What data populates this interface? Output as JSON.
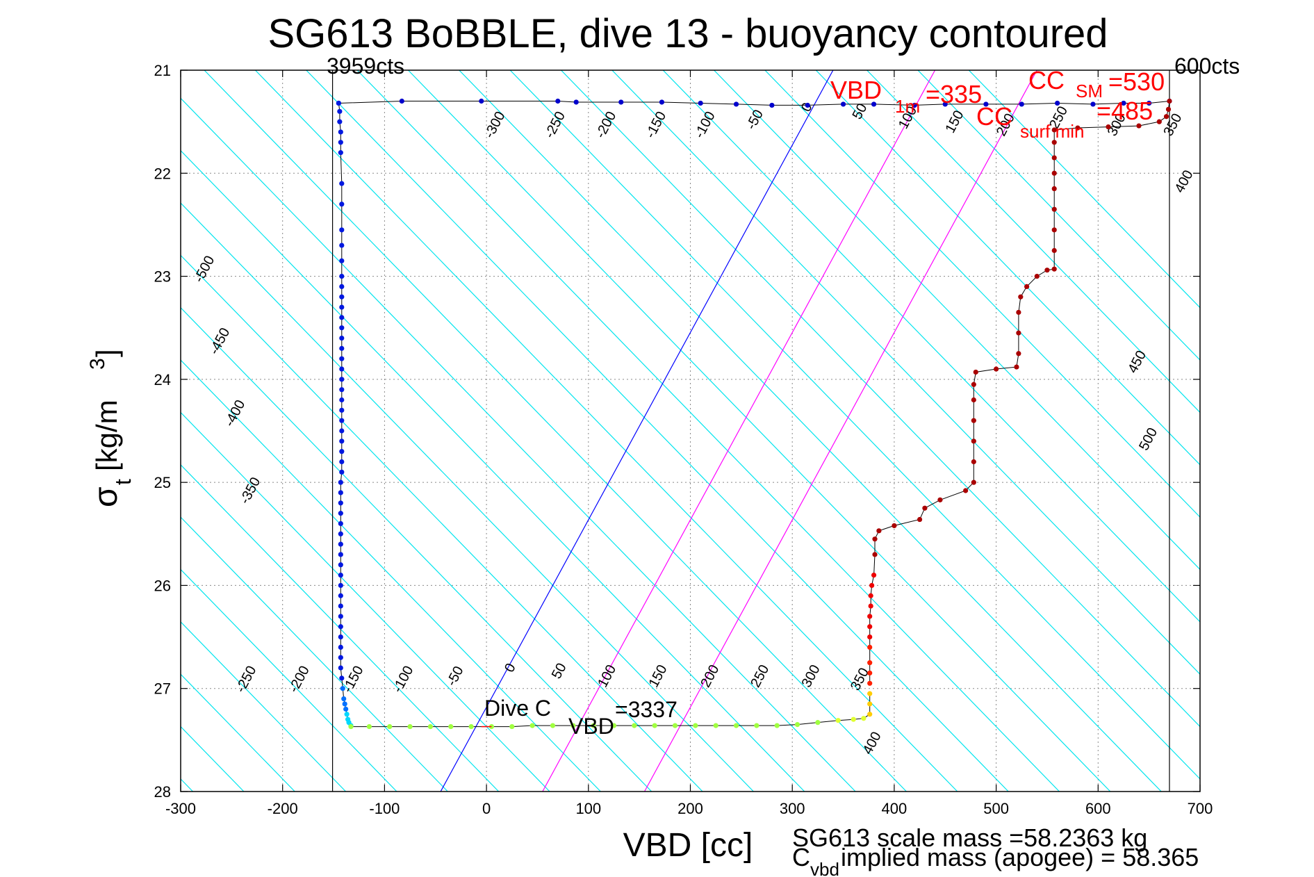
{
  "chart_data": {
    "type": "scatter",
    "title": "SG613 BoBBLE, dive 13 - buoyancy contoured",
    "xlabel": "VBD [cc]",
    "ylabel_main": "σ",
    "ylabel_sub": "t",
    "ylabel_rest": " [kg/m",
    "ylabel_sup": "3",
    "ylabel_close": "]",
    "xlim": [
      -300,
      700
    ],
    "ylim": [
      21,
      28
    ],
    "y_reversed": true,
    "grid": true,
    "x_ticks": [
      -300,
      -200,
      -100,
      0,
      100,
      200,
      300,
      400,
      500,
      600,
      700
    ],
    "y_ticks": [
      21,
      22,
      23,
      24,
      25,
      26,
      27,
      28
    ],
    "colors": {
      "contour": "#00e5ee",
      "dive_line": "#0000ff",
      "magenta_line": "#ff00ff",
      "red_text": "#ff0000",
      "climb_points": "#aa0000"
    },
    "reference_lines": {
      "vbd_min_x": -151,
      "vbd_min_label": "3959cts",
      "vbd_max_x": 670,
      "vbd_max_label": "600cts"
    },
    "contour_slope_cc_per_sigma": 98.4,
    "contour_levels": [
      -500,
      -450,
      -400,
      -350,
      -300,
      -250,
      -200,
      -150,
      -100,
      -50,
      0,
      50,
      100,
      150,
      200,
      250,
      300,
      350,
      400,
      450,
      500
    ],
    "contour_labels_top": [
      {
        "text": "-300",
        "x": 12,
        "y": 21.55
      },
      {
        "text": "-250",
        "x": 71,
        "y": 21.55
      },
      {
        "text": "-200",
        "x": 121,
        "y": 21.55
      },
      {
        "text": "-150",
        "x": 170,
        "y": 21.55
      },
      {
        "text": "-100",
        "x": 218,
        "y": 21.55
      },
      {
        "text": "-50",
        "x": 267,
        "y": 21.5
      },
      {
        "text": "0",
        "x": 318,
        "y": 21.38
      },
      {
        "text": "50",
        "x": 370,
        "y": 21.42
      },
      {
        "text": "100",
        "x": 417,
        "y": 21.48
      },
      {
        "text": "150",
        "x": 463,
        "y": 21.52
      },
      {
        "text": "200",
        "x": 513,
        "y": 21.55
      },
      {
        "text": "250",
        "x": 565,
        "y": 21.48
      },
      {
        "text": "300",
        "x": 622,
        "y": 21.55
      },
      {
        "text": "350",
        "x": 677,
        "y": 21.55
      }
    ],
    "contour_labels_left": [
      {
        "text": "-500",
        "x": -273,
        "y": 22.95
      },
      {
        "text": "-450",
        "x": -258,
        "y": 23.65
      },
      {
        "text": "-400",
        "x": -243,
        "y": 24.35
      },
      {
        "text": "-350",
        "x": -228,
        "y": 25.1
      }
    ],
    "contour_labels_right": [
      {
        "text": "400",
        "x": 688,
        "y": 22.1
      },
      {
        "text": "450",
        "x": 642,
        "y": 23.85
      },
      {
        "text": "500",
        "x": 653,
        "y": 24.6
      }
    ],
    "contour_labels_bottom": [
      {
        "text": "-250",
        "x": -232,
        "y": 26.93
      },
      {
        "text": "-200",
        "x": -180,
        "y": 26.93
      },
      {
        "text": "-150",
        "x": -127,
        "y": 26.93
      },
      {
        "text": "-100",
        "x": -78,
        "y": 26.93
      },
      {
        "text": "-50",
        "x": -27,
        "y": 26.9
      },
      {
        "text": "0",
        "x": 27,
        "y": 26.82
      },
      {
        "text": "50",
        "x": 75,
        "y": 26.85
      },
      {
        "text": "100",
        "x": 122,
        "y": 26.9
      },
      {
        "text": "150",
        "x": 172,
        "y": 26.9
      },
      {
        "text": "200",
        "x": 223,
        "y": 26.9
      },
      {
        "text": "250",
        "x": 272,
        "y": 26.9
      },
      {
        "text": "300",
        "x": 322,
        "y": 26.9
      },
      {
        "text": "350",
        "x": 370,
        "y": 26.93
      },
      {
        "text": "400",
        "x": 382,
        "y": 27.55
      }
    ],
    "reference_diagonals": [
      {
        "color": "#0000ff",
        "x_at_28": -45,
        "x_at_21": 340
      },
      {
        "color": "#ff00ff",
        "x_at_28": 55,
        "x_at_21": 440
      },
      {
        "color": "#ff00ff",
        "x_at_28": 155,
        "x_at_21": 540
      }
    ],
    "dive_series": [
      [
        -145,
        21.32
      ],
      [
        -144,
        21.4
      ],
      [
        -144,
        21.5
      ],
      [
        -143,
        21.6
      ],
      [
        -143,
        21.7
      ],
      [
        -143,
        21.8
      ],
      [
        -142,
        22.1
      ],
      [
        -142,
        22.3
      ],
      [
        -142,
        22.55
      ],
      [
        -142,
        22.7
      ],
      [
        -142,
        22.85
      ],
      [
        -142,
        23.0
      ],
      [
        -142,
        23.1
      ],
      [
        -142,
        23.2
      ],
      [
        -142,
        23.3
      ],
      [
        -142,
        23.4
      ],
      [
        -142,
        23.5
      ],
      [
        -142,
        23.6
      ],
      [
        -142,
        23.7
      ],
      [
        -142,
        23.8
      ],
      [
        -142,
        23.9
      ],
      [
        -142,
        24.0
      ],
      [
        -142,
        24.1
      ],
      [
        -142,
        24.2
      ],
      [
        -142,
        24.3
      ],
      [
        -142,
        24.4
      ],
      [
        -142,
        24.5
      ],
      [
        -142,
        24.6
      ],
      [
        -142,
        24.7
      ],
      [
        -142,
        24.8
      ],
      [
        -142,
        24.9
      ],
      [
        -143,
        25.0
      ],
      [
        -143,
        25.1
      ],
      [
        -143,
        25.2
      ],
      [
        -143,
        25.3
      ],
      [
        -143,
        25.4
      ],
      [
        -143,
        25.5
      ],
      [
        -143,
        25.6
      ],
      [
        -143,
        25.7
      ],
      [
        -143,
        25.8
      ],
      [
        -143,
        25.9
      ],
      [
        -143,
        26.0
      ],
      [
        -143,
        26.1
      ],
      [
        -143,
        26.2
      ],
      [
        -143,
        26.3
      ],
      [
        -143,
        26.4
      ],
      [
        -143,
        26.5
      ],
      [
        -143,
        26.6
      ],
      [
        -143,
        26.7
      ],
      [
        -143,
        26.8
      ],
      [
        -142,
        26.9
      ],
      [
        -141,
        27.0
      ],
      [
        -140,
        27.1
      ],
      [
        -139,
        27.15
      ],
      [
        -138,
        27.2
      ],
      [
        -137,
        27.25
      ],
      [
        -136,
        27.3
      ],
      [
        -135,
        27.33
      ],
      [
        -133,
        27.36
      ]
    ],
    "bottom_series": [
      [
        -133,
        27.37
      ],
      [
        -115,
        27.37
      ],
      [
        -95,
        27.37
      ],
      [
        -75,
        27.37
      ],
      [
        -55,
        27.37
      ],
      [
        -35,
        27.37
      ],
      [
        -15,
        27.37
      ],
      [
        5,
        27.37
      ],
      [
        25,
        27.37
      ],
      [
        45,
        27.36
      ],
      [
        65,
        27.36
      ],
      [
        85,
        27.36
      ],
      [
        105,
        27.36
      ],
      [
        125,
        27.36
      ],
      [
        145,
        27.36
      ],
      [
        165,
        27.36
      ],
      [
        185,
        27.36
      ],
      [
        205,
        27.36
      ],
      [
        225,
        27.36
      ],
      [
        245,
        27.36
      ],
      [
        265,
        27.36
      ],
      [
        285,
        27.36
      ],
      [
        305,
        27.35
      ],
      [
        325,
        27.33
      ],
      [
        345,
        27.31
      ],
      [
        360,
        27.3
      ],
      [
        370,
        27.29
      ],
      [
        376,
        27.25
      ],
      [
        376,
        27.15
      ],
      [
        376,
        27.05
      ]
    ],
    "climb_series": [
      [
        376,
        26.95
      ],
      [
        376,
        26.85
      ],
      [
        376,
        26.75
      ],
      [
        376,
        26.6
      ],
      [
        376,
        26.5
      ],
      [
        376,
        26.4
      ],
      [
        376,
        26.3
      ],
      [
        377,
        26.2
      ],
      [
        377,
        26.1
      ],
      [
        378,
        26.0
      ],
      [
        380,
        25.9
      ],
      [
        381,
        25.7
      ],
      [
        381,
        25.55
      ],
      [
        385,
        25.47
      ],
      [
        400,
        25.42
      ],
      [
        425,
        25.36
      ],
      [
        430,
        25.25
      ],
      [
        445,
        25.17
      ],
      [
        470,
        25.08
      ],
      [
        478,
        25.0
      ],
      [
        478,
        24.8
      ],
      [
        478,
        24.6
      ],
      [
        478,
        24.4
      ],
      [
        478,
        24.2
      ],
      [
        478,
        24.05
      ],
      [
        480,
        23.93
      ],
      [
        500,
        23.9
      ],
      [
        520,
        23.88
      ],
      [
        522,
        23.75
      ],
      [
        522,
        23.55
      ],
      [
        522,
        23.35
      ],
      [
        524,
        23.2
      ],
      [
        530,
        23.1
      ],
      [
        540,
        23.0
      ],
      [
        550,
        22.94
      ],
      [
        557,
        22.93
      ],
      [
        557,
        22.75
      ],
      [
        557,
        22.55
      ],
      [
        557,
        22.35
      ],
      [
        557,
        22.15
      ],
      [
        557,
        22.0
      ],
      [
        557,
        21.85
      ],
      [
        557,
        21.7
      ],
      [
        557,
        21.58
      ],
      [
        580,
        21.56
      ],
      [
        610,
        21.55
      ],
      [
        640,
        21.54
      ],
      [
        660,
        21.5
      ],
      [
        667,
        21.45
      ],
      [
        669,
        21.38
      ],
      [
        670,
        21.3
      ]
    ],
    "surface_series": [
      [
        -145,
        21.32
      ],
      [
        -83,
        21.3
      ],
      [
        -5,
        21.3
      ],
      [
        70,
        21.3
      ],
      [
        88,
        21.31
      ],
      [
        132,
        21.31
      ],
      [
        172,
        21.31
      ],
      [
        210,
        21.32
      ],
      [
        245,
        21.33
      ],
      [
        280,
        21.34
      ],
      [
        315,
        21.34
      ],
      [
        350,
        21.33
      ],
      [
        380,
        21.33
      ],
      [
        420,
        21.34
      ],
      [
        450,
        21.33
      ],
      [
        490,
        21.33
      ],
      [
        525,
        21.33
      ],
      [
        560,
        21.32
      ],
      [
        595,
        21.33
      ],
      [
        625,
        21.32
      ],
      [
        650,
        21.32
      ],
      [
        670,
        21.3
      ]
    ],
    "annotations": {
      "vbd_1m_main": "VBD",
      "vbd_1m_sub": "1m",
      "vbd_1m_value": "=335",
      "cc_sm_main": "CC",
      "cc_sm_sub": "SM",
      "cc_sm_value": "=530",
      "cc_surfmin_main": "CC",
      "cc_surfmin_sub": "surf min",
      "cc_surfmin_value": "=485",
      "dive_c_main": "Dive C",
      "dive_c_sub": "VBD",
      "dive_c_value": "=3337"
    },
    "footer": {
      "scale_mass": "SG613 scale mass =58.2363 kg",
      "cvbd_main": "C",
      "cvbd_sub": "vbd",
      "cvbd_rest": " implied mass (apogee) = 58.365"
    }
  }
}
